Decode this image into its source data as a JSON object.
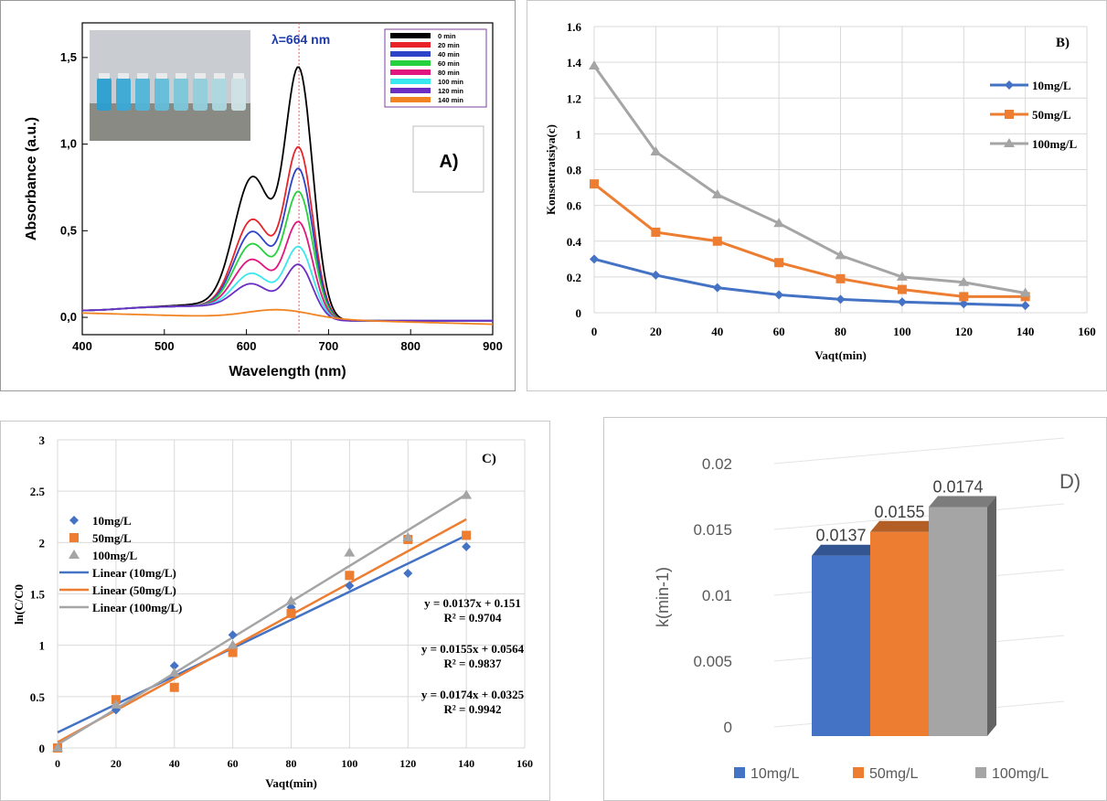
{
  "panels": {
    "A": {
      "label": "A)",
      "peak_label": "λ=664 nm",
      "inset_photo": "vial-photo",
      "colors": {
        "peak_line": "#e05a6a",
        "peak_label": "#1f3ca8",
        "legend_border": "#7b3fa0"
      }
    },
    "B": {
      "label": "B)"
    },
    "C": {
      "label": "C)",
      "equations": [
        {
          "eq": "y = 0.0137x + 0.151",
          "r2": "R² = 0.9704"
        },
        {
          "eq": "y = 0.0155x + 0.0564",
          "r2": "R² = 0.9837"
        },
        {
          "eq": "y = 0.0174x + 0.0325",
          "r2": "R² = 0.9942"
        }
      ]
    },
    "D": {
      "label": "D)"
    }
  },
  "chart_data": [
    {
      "id": "A",
      "type": "line",
      "xlabel": "Wavelength (nm)",
      "ylabel": "Absorbance (a.u.)",
      "xlim": [
        400,
        900
      ],
      "ylim": [
        -0.1,
        1.7
      ],
      "xticks": [
        "400",
        "500",
        "600",
        "700",
        "800",
        "900"
      ],
      "yticks": [
        "0,0",
        "0,5",
        "1,0",
        "1,5"
      ],
      "legend_position": "top-right",
      "series": [
        {
          "name": "0 min",
          "color": "#000000",
          "peak": 1.42,
          "shoulder": 0.78,
          "tail": 0.06
        },
        {
          "name": "20 min",
          "color": "#e8232a",
          "peak": 0.97,
          "shoulder": 0.54,
          "tail": 0.05
        },
        {
          "name": "40 min",
          "color": "#2d43c8",
          "peak": 0.85,
          "shoulder": 0.47,
          "tail": 0.05
        },
        {
          "name": "60 min",
          "color": "#25d13c",
          "peak": 0.72,
          "shoulder": 0.4,
          "tail": 0.05
        },
        {
          "name": "80 min",
          "color": "#e2167f",
          "peak": 0.55,
          "shoulder": 0.31,
          "tail": 0.05
        },
        {
          "name": "100 min",
          "color": "#38e8ee",
          "peak": 0.41,
          "shoulder": 0.23,
          "tail": 0.05
        },
        {
          "name": "120 min",
          "color": "#6a2ec4",
          "peak": 0.31,
          "shoulder": 0.17,
          "tail": 0.05
        },
        {
          "name": "140 min",
          "color": "#f28322",
          "peak": 0.05,
          "shoulder": 0.03,
          "tail": 0.03
        }
      ],
      "peak_wavelength": 664
    },
    {
      "id": "B",
      "type": "line",
      "xlabel": "Vaqt(min)",
      "ylabel": "Konsentratsiya(c)",
      "xlim": [
        0,
        160
      ],
      "ylim": [
        0,
        1.6
      ],
      "xticks": [
        "0",
        "20",
        "40",
        "60",
        "80",
        "100",
        "120",
        "140",
        "160"
      ],
      "yticks": [
        "0",
        "0.2",
        "0.4",
        "0.6",
        "0.8",
        "1",
        "1.2",
        "1.4",
        "1.6"
      ],
      "x": [
        0,
        20,
        40,
        60,
        80,
        100,
        120,
        140
      ],
      "grid": true,
      "legend_position": "right",
      "series": [
        {
          "name": "10mg/L",
          "color": "#4472c4",
          "marker": "diamond",
          "values": [
            0.3,
            0.21,
            0.14,
            0.1,
            0.075,
            0.06,
            0.05,
            0.04
          ]
        },
        {
          "name": "50mg/L",
          "color": "#ed7d31",
          "marker": "square",
          "values": [
            0.72,
            0.45,
            0.4,
            0.28,
            0.19,
            0.13,
            0.09,
            0.09
          ]
        },
        {
          "name": "100mg/L",
          "color": "#a5a5a5",
          "marker": "triangle",
          "values": [
            1.38,
            0.9,
            0.66,
            0.5,
            0.32,
            0.2,
            0.17,
            0.11
          ]
        }
      ]
    },
    {
      "id": "C",
      "type": "scatter",
      "xlabel": "Vaqt(min)",
      "ylabel": "ln(C/C0",
      "xlim": [
        0,
        160
      ],
      "ylim": [
        0,
        3
      ],
      "xticks": [
        "0",
        "20",
        "40",
        "60",
        "80",
        "100",
        "120",
        "140",
        "160"
      ],
      "yticks": [
        "0",
        "0.5",
        "1",
        "1.5",
        "2",
        "2.5",
        "3"
      ],
      "x": [
        0,
        20,
        40,
        60,
        80,
        100,
        120,
        140
      ],
      "grid": true,
      "legend_position": "left",
      "series": [
        {
          "name": "10mg/L",
          "color": "#4472c4",
          "marker": "diamond",
          "values": [
            0,
            0.37,
            0.8,
            1.1,
            1.37,
            1.58,
            1.7,
            1.96
          ]
        },
        {
          "name": "50mg/L",
          "color": "#ed7d31",
          "marker": "square",
          "values": [
            0,
            0.47,
            0.59,
            0.93,
            1.31,
            1.68,
            2.03,
            2.07
          ]
        },
        {
          "name": "100mg/L",
          "color": "#a5a5a5",
          "marker": "triangle",
          "values": [
            0,
            0.42,
            0.73,
            1.0,
            1.43,
            1.9,
            2.05,
            2.46
          ]
        }
      ],
      "fits": [
        {
          "name": "Linear (10mg/L)",
          "color": "#4472c4",
          "slope": 0.0137,
          "intercept": 0.151
        },
        {
          "name": "Linear (50mg/L)",
          "color": "#ed7d31",
          "slope": 0.0155,
          "intercept": 0.0564
        },
        {
          "name": "Linear (100mg/L)",
          "color": "#a5a5a5",
          "slope": 0.0174,
          "intercept": 0.0325
        }
      ]
    },
    {
      "id": "D",
      "type": "bar",
      "ylabel": "k(min-1)",
      "ylim": [
        0,
        0.02
      ],
      "yticks": [
        "0",
        "0.005",
        "0.01",
        "0.015",
        "0.02"
      ],
      "legend_position": "bottom",
      "series": [
        {
          "name": "10mg/L",
          "color": "#4472c4",
          "value": 0.0137,
          "label": "0.0137"
        },
        {
          "name": "50mg/L",
          "color": "#ed7d31",
          "value": 0.0155,
          "label": "0.0155"
        },
        {
          "name": "100mg/L",
          "color": "#a5a5a5",
          "value": 0.0174,
          "label": "0.0174"
        }
      ]
    }
  ]
}
